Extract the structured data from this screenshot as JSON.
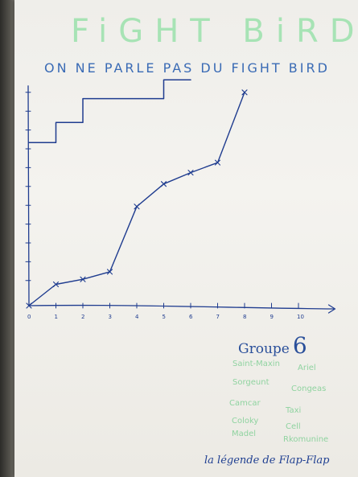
{
  "title": "FiGHT BiRD",
  "subtitle": "ON NE PARLE PAS DU FIGHT BIRD",
  "group": {
    "label": "Groupe",
    "number": "6"
  },
  "names": [
    "Saint-Maxin",
    "Ariel",
    "Sorgeunt",
    "Congeas",
    "Camcar",
    "Taxi",
    "Coloky",
    "Cell",
    "Madel",
    "Rkomunine"
  ],
  "legend": "la légende de Flap-Flap",
  "chart_data": {
    "type": "line",
    "title": "",
    "xlabel": "",
    "ylabel": "",
    "x_ticks": [
      "0",
      "1",
      "2",
      "3",
      "4",
      "5",
      "6",
      "7",
      "8",
      "9",
      "10"
    ],
    "xlim": [
      0,
      11
    ],
    "ylim": [
      0,
      17
    ],
    "series": [
      {
        "values_x": [
          0,
          1,
          2,
          3,
          4,
          5,
          6,
          7,
          8
        ],
        "values_y": [
          0,
          1.7,
          2.1,
          2.7,
          7.9,
          9.7,
          10.6,
          11.4,
          17
        ],
        "markers": true,
        "style": "curve"
      },
      {
        "values_x": [
          0,
          1,
          1,
          2,
          2,
          5,
          5,
          6
        ],
        "values_y": [
          13,
          13,
          14.6,
          14.6,
          16.5,
          16.5,
          18,
          18
        ],
        "markers": false,
        "style": "steps"
      }
    ],
    "colors": {
      "ink": "#1f3c8f",
      "green_ink": "#8fe0a3"
    }
  }
}
